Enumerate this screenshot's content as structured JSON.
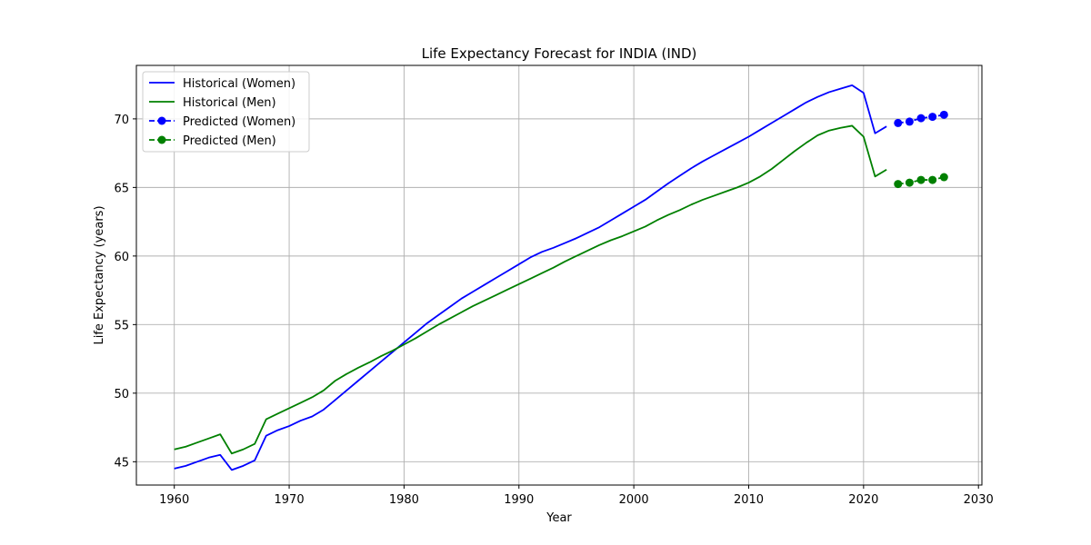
{
  "chart_data": {
    "type": "line",
    "title": "Life Expectancy Forecast for INDIA (IND)",
    "xlabel": "Year",
    "ylabel": "Life Expectancy (years)",
    "xlim": [
      1956.7,
      2030.3
    ],
    "ylim": [
      43.3,
      73.9
    ],
    "xticks": [
      1960,
      1970,
      1980,
      1990,
      2000,
      2010,
      2020,
      2030
    ],
    "yticks": [
      45,
      50,
      55,
      60,
      65,
      70
    ],
    "grid": true,
    "legend_position": "top-left",
    "series": [
      {
        "name": "Historical (Women)",
        "color": "#0000ff",
        "style": "solid",
        "x": [
          1960,
          1961,
          1962,
          1963,
          1964,
          1965,
          1966,
          1967,
          1968,
          1969,
          1970,
          1971,
          1972,
          1973,
          1974,
          1975,
          1976,
          1977,
          1978,
          1979,
          1980,
          1981,
          1982,
          1983,
          1984,
          1985,
          1986,
          1987,
          1988,
          1989,
          1990,
          1991,
          1992,
          1993,
          1994,
          1995,
          1996,
          1997,
          1998,
          1999,
          2000,
          2001,
          2002,
          2003,
          2004,
          2005,
          2006,
          2007,
          2008,
          2009,
          2010,
          2011,
          2012,
          2013,
          2014,
          2015,
          2016,
          2017,
          2018,
          2019,
          2020,
          2021,
          2022
        ],
        "y": [
          44.5,
          44.7,
          45.0,
          45.3,
          45.5,
          44.4,
          44.7,
          45.1,
          46.9,
          47.3,
          47.6,
          48.0,
          48.3,
          48.8,
          49.5,
          50.2,
          50.9,
          51.6,
          52.3,
          53.0,
          53.7,
          54.4,
          55.1,
          55.7,
          56.3,
          56.9,
          57.4,
          57.9,
          58.4,
          58.9,
          59.4,
          59.9,
          60.3,
          60.6,
          60.95,
          61.3,
          61.7,
          62.1,
          62.6,
          63.1,
          63.6,
          64.1,
          64.7,
          65.3,
          65.85,
          66.4,
          66.9,
          67.35,
          67.8,
          68.25,
          68.7,
          69.2,
          69.7,
          70.2,
          70.7,
          71.2,
          71.6,
          71.95,
          72.2,
          72.45,
          71.9,
          68.95,
          69.45
        ]
      },
      {
        "name": "Historical (Men)",
        "color": "#008000",
        "style": "solid",
        "x": [
          1960,
          1961,
          1962,
          1963,
          1964,
          1965,
          1966,
          1967,
          1968,
          1969,
          1970,
          1971,
          1972,
          1973,
          1974,
          1975,
          1976,
          1977,
          1978,
          1979,
          1980,
          1981,
          1982,
          1983,
          1984,
          1985,
          1986,
          1987,
          1988,
          1989,
          1990,
          1991,
          1992,
          1993,
          1994,
          1995,
          1996,
          1997,
          1998,
          1999,
          2000,
          2001,
          2002,
          2003,
          2004,
          2005,
          2006,
          2007,
          2008,
          2009,
          2010,
          2011,
          2012,
          2013,
          2014,
          2015,
          2016,
          2017,
          2018,
          2019,
          2020,
          2021,
          2022
        ],
        "y": [
          45.9,
          46.1,
          46.4,
          46.7,
          47.0,
          45.6,
          45.9,
          46.3,
          48.1,
          48.5,
          48.9,
          49.3,
          49.7,
          50.2,
          50.9,
          51.4,
          51.85,
          52.25,
          52.7,
          53.1,
          53.55,
          54.0,
          54.5,
          55.0,
          55.45,
          55.9,
          56.35,
          56.75,
          57.15,
          57.55,
          57.95,
          58.35,
          58.75,
          59.15,
          59.6,
          60.0,
          60.4,
          60.8,
          61.15,
          61.45,
          61.8,
          62.15,
          62.6,
          63.0,
          63.35,
          63.75,
          64.1,
          64.4,
          64.7,
          65.0,
          65.35,
          65.8,
          66.35,
          67.0,
          67.65,
          68.25,
          68.8,
          69.15,
          69.35,
          69.5,
          68.7,
          65.8,
          66.3
        ]
      },
      {
        "name": "Predicted (Women)",
        "color": "#0000ff",
        "style": "dashed-marker",
        "x": [
          2023,
          2024,
          2025,
          2026,
          2027
        ],
        "y": [
          69.7,
          69.8,
          70.05,
          70.15,
          70.3
        ]
      },
      {
        "name": "Predicted (Men)",
        "color": "#008000",
        "style": "dashed-marker",
        "x": [
          2023,
          2024,
          2025,
          2026,
          2027
        ],
        "y": [
          65.25,
          65.35,
          65.55,
          65.55,
          65.75
        ]
      }
    ]
  }
}
